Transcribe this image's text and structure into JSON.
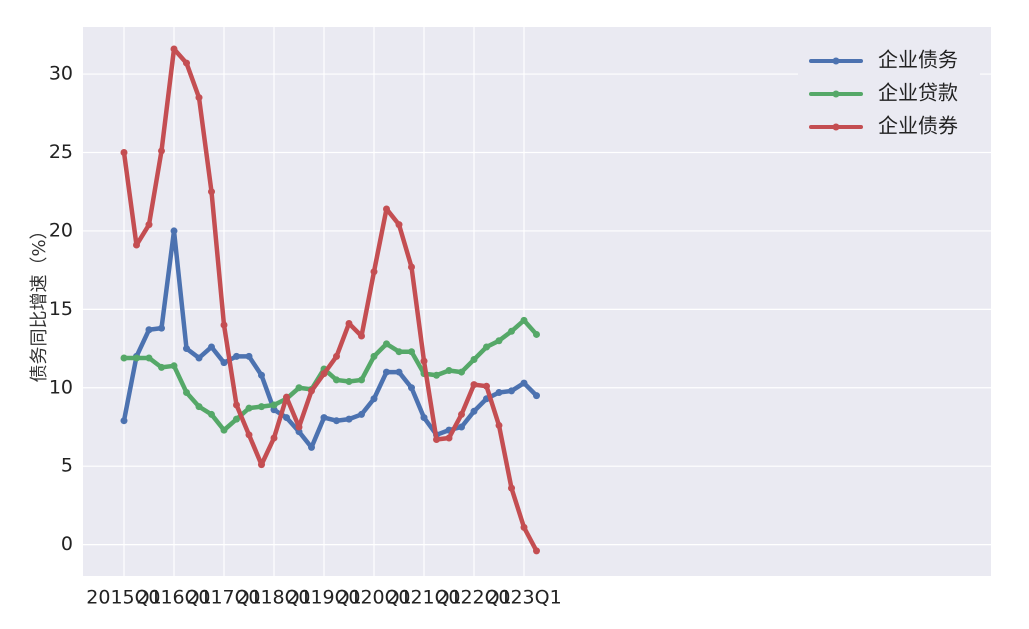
{
  "chart_data": {
    "type": "line",
    "xlabel": "",
    "ylabel": "债务同比增速（%）",
    "ylim": [
      -2,
      33
    ],
    "yticks": [
      0,
      5,
      10,
      15,
      20,
      25,
      30
    ],
    "grid": true,
    "legend_position": "top-right",
    "x": [
      "2015Q1",
      "2015Q2",
      "2015Q3",
      "2015Q4",
      "2016Q1",
      "2016Q2",
      "2016Q3",
      "2016Q4",
      "2017Q1",
      "2017Q2",
      "2017Q3",
      "2017Q4",
      "2018Q1",
      "2018Q2",
      "2018Q3",
      "2018Q4",
      "2019Q1",
      "2019Q2",
      "2019Q3",
      "2019Q4",
      "2020Q1",
      "2020Q2",
      "2020Q3",
      "2020Q4",
      "2021Q1",
      "2021Q2",
      "2021Q3",
      "2021Q4",
      "2022Q1",
      "2022Q2",
      "2022Q3",
      "2022Q4",
      "2023Q1",
      "2023Q2"
    ],
    "xtick_labels": [
      "2015Q1",
      "2016Q1",
      "2017Q1",
      "2018Q1",
      "2019Q1",
      "2020Q1",
      "2021Q1",
      "2022Q1",
      "2023Q1"
    ],
    "series": [
      {
        "name": "企业债务",
        "color": "#4c72b0",
        "values": [
          7.9,
          12.0,
          13.7,
          13.8,
          20.0,
          12.5,
          11.9,
          12.6,
          11.6,
          12.0,
          12.0,
          10.8,
          8.6,
          8.1,
          7.2,
          6.2,
          8.1,
          7.9,
          8.0,
          8.3,
          9.3,
          11.0,
          11.0,
          10.0,
          8.1,
          7.0,
          7.3,
          7.5,
          8.5,
          9.3,
          9.7,
          9.8,
          10.3,
          9.5
        ]
      },
      {
        "name": "企业贷款",
        "color": "#55a868",
        "values": [
          11.9,
          11.9,
          11.9,
          11.3,
          11.4,
          9.7,
          8.8,
          8.3,
          7.3,
          8.0,
          8.7,
          8.8,
          8.9,
          9.3,
          10.0,
          9.9,
          11.2,
          10.5,
          10.4,
          10.5,
          12.0,
          12.8,
          12.3,
          12.3,
          10.9,
          10.8,
          11.1,
          11.0,
          11.8,
          12.6,
          13.0,
          13.6,
          14.3,
          13.4
        ]
      },
      {
        "name": "企业债券",
        "color": "#c44e52",
        "values": [
          25.0,
          19.1,
          20.4,
          25.1,
          31.6,
          30.7,
          28.5,
          22.5,
          14.0,
          8.9,
          7.0,
          5.1,
          6.8,
          9.4,
          7.5,
          9.8,
          10.9,
          12.0,
          14.1,
          13.3,
          17.4,
          21.4,
          20.4,
          17.7,
          11.7,
          6.7,
          6.8,
          8.3,
          10.2,
          10.1,
          7.6,
          3.6,
          1.1,
          -0.4
        ]
      }
    ]
  }
}
